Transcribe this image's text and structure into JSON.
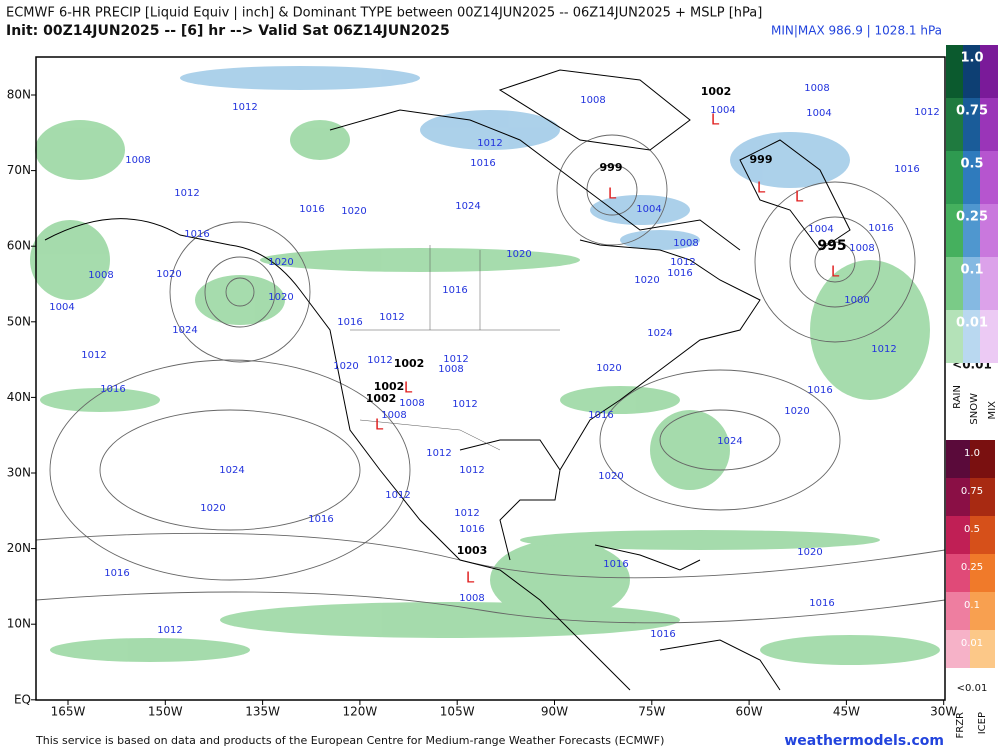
{
  "header": {
    "title": "ECMWF 6-HR PRECIP [Liquid Equiv | inch] & Dominant TYPE between 00Z14JUN2025 -- 06Z14JUN2025 + MSLP [hPa]",
    "init": "Init: 00Z14JUN2025 -- [6] hr --> Valid Sat 06Z14JUN2025",
    "minmax": "MIN|MAX 986.9 | 1028.1 hPa"
  },
  "map": {
    "lat_labels": [
      "80N",
      "70N",
      "60N",
      "50N",
      "40N",
      "30N",
      "20N",
      "10N",
      "EQ"
    ],
    "lon_labels": [
      "165W",
      "150W",
      "135W",
      "120W",
      "105W",
      "90W",
      "75W",
      "60W",
      "45W",
      "30W"
    ],
    "isobar_labels": [
      "1012",
      "1008",
      "1012",
      "1016",
      "1020",
      "1016",
      "1008",
      "1020",
      "1004",
      "1020",
      "1020",
      "1024",
      "1016",
      "1012",
      "1012",
      "1016",
      "1020",
      "1012",
      "1012",
      "1008",
      "1008",
      "1008",
      "1012",
      "1012",
      "1012",
      "1012",
      "1024",
      "1020",
      "1016",
      "1016",
      "1012",
      "1012",
      "1016",
      "1008",
      "1016",
      "1016",
      "1016",
      "1020",
      "1020",
      "1024",
      "1016",
      "1020",
      "1016",
      "1020",
      "1024",
      "1012",
      "1000",
      "1020",
      "1016",
      "1012",
      "1008",
      "1020",
      "1016",
      "1024",
      "1016",
      "1012",
      "1004",
      "1008",
      "1004",
      "1012",
      "1016",
      "1016",
      "1008",
      "1004",
      "1004",
      "1008"
    ],
    "pressure_labels": [
      "999",
      "999",
      "995",
      "1002",
      "1002",
      "1002",
      "1002",
      "1003"
    ],
    "low_markers": [
      "L",
      "L",
      "L",
      "L",
      "L",
      "L",
      "L",
      "L"
    ]
  },
  "legend": {
    "upper_labels": [
      "1.0",
      "0.75",
      "0.5",
      "0.25",
      "0.1",
      "0.01"
    ],
    "upper_below": "<0.01",
    "upper_types": [
      "RAIN",
      "SNOW",
      "MIX"
    ],
    "lower_labels": [
      "1.0",
      "0.75",
      "0.5",
      "0.25",
      "0.1",
      "0.01"
    ],
    "lower_below": "<0.01",
    "lower_types": [
      "FRZR",
      "ICEP"
    ]
  },
  "footer": {
    "credit": "This service is based on data and products of the European Centre for Medium-range Weather Forecasts (ECMWF)",
    "site": "weathermodels.com"
  }
}
